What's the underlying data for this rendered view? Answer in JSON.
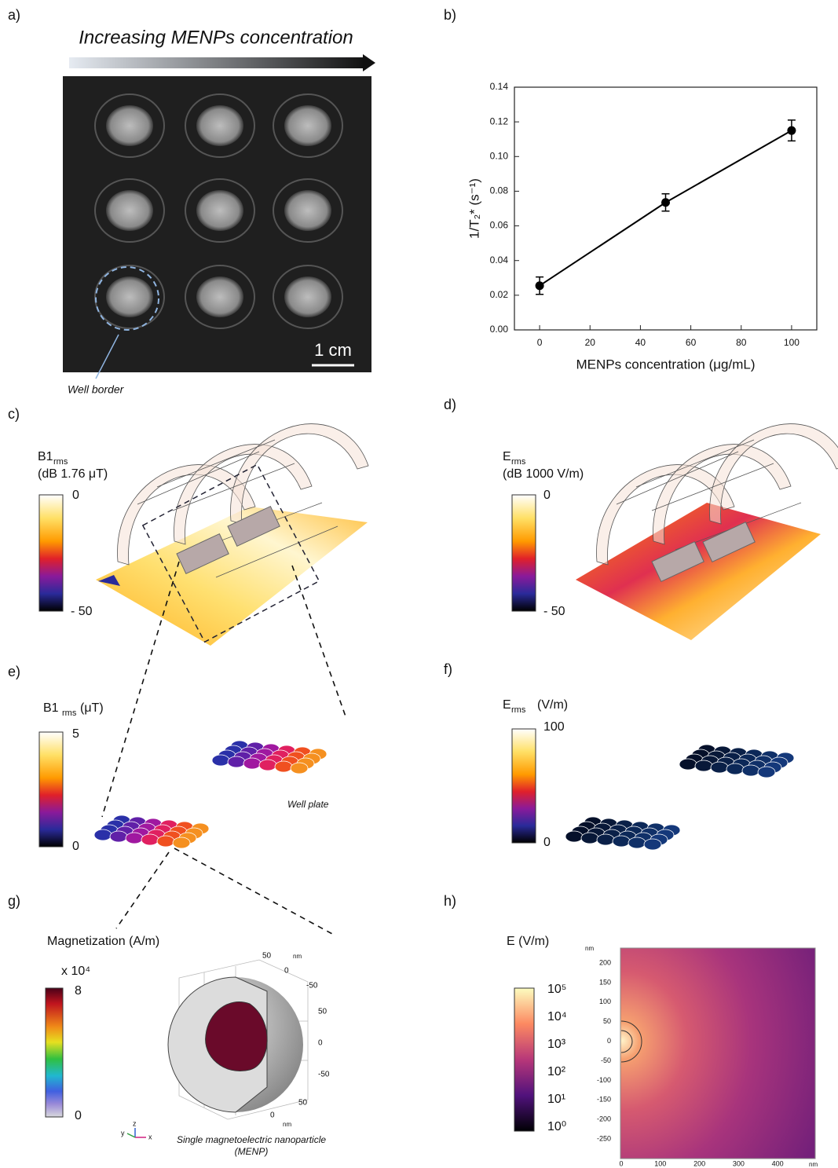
{
  "panels": {
    "a": {
      "label": "a)",
      "title": "Increasing MENPs concentration",
      "scale_bar": "1 cm",
      "annotation": "Well border"
    },
    "b": {
      "label": "b)"
    },
    "c": {
      "label": "c)",
      "quantity": "B1",
      "subscript": "rms",
      "unit": "(dB 1.76 μT)",
      "colorbar_top": "0",
      "colorbar_bottom": "- 50"
    },
    "d": {
      "label": "d)",
      "quantity": "E",
      "subscript": "rms",
      "unit": "(dB 1000 V/m)",
      "colorbar_top": "0",
      "colorbar_bottom": "- 50"
    },
    "e": {
      "label": "e)",
      "quantity": "B1",
      "subscript": "rms",
      "unit": "(μT)",
      "colorbar_top": "5",
      "colorbar_bottom": "0",
      "annotation": "Well plate"
    },
    "f": {
      "label": "f)",
      "quantity": "E",
      "subscript": "rms",
      "unit": "(V/m)",
      "colorbar_top": "100",
      "colorbar_bottom": "0"
    },
    "g": {
      "label": "g)",
      "quantity": "Magnetization (A/m)",
      "multiplier": "x 10⁴",
      "colorbar_top": "8",
      "colorbar_bottom": "0",
      "axis_labels": [
        "50",
        "nm",
        "0",
        "-50",
        "50",
        "0",
        "-50",
        "50",
        "0",
        "nm"
      ],
      "triad": [
        "y",
        "z",
        "x"
      ],
      "caption": "Single magnetoelectric nanoparticle",
      "caption_sub": "(MENP)"
    },
    "h": {
      "label": "h)",
      "quantity": "E (V/m)",
      "colorbar_ticks": [
        "10⁵",
        "10⁴",
        "10³",
        "10²",
        "10¹",
        "10⁰"
      ],
      "y_ticks": [
        "200",
        "150",
        "100",
        "50",
        "0",
        "-50",
        "-100",
        "-150",
        "-200",
        "-250"
      ],
      "x_ticks": [
        "0",
        "100",
        "200",
        "300",
        "400"
      ],
      "y_unit": "nm",
      "x_unit": "nm"
    }
  },
  "chart_data": {
    "type": "line",
    "x_label": "MENPs concentration (μg/mL)",
    "y_label": "1/T₂* (s⁻¹)",
    "x": [
      0,
      50,
      100
    ],
    "values": [
      0.0255,
      0.0735,
      0.115
    ],
    "errors": [
      0.005,
      0.005,
      0.006
    ],
    "color": "#000000",
    "xlim": [
      -10,
      110
    ],
    "ylim": [
      0,
      0.14
    ],
    "xticks": [
      0,
      20,
      40,
      60,
      80,
      100
    ],
    "yticks": [
      {
        "value": 0,
        "label": "0.00"
      },
      {
        "value": 0.02,
        "label": "0.02"
      },
      {
        "value": 0.04,
        "label": "0.04"
      },
      {
        "value": 0.06,
        "label": "0.06"
      },
      {
        "value": 0.08,
        "label": "0.08"
      },
      {
        "value": 0.1,
        "label": "0.10"
      },
      {
        "value": 0.12,
        "label": "0.12"
      },
      {
        "value": 0.14,
        "label": "0.14"
      }
    ]
  }
}
